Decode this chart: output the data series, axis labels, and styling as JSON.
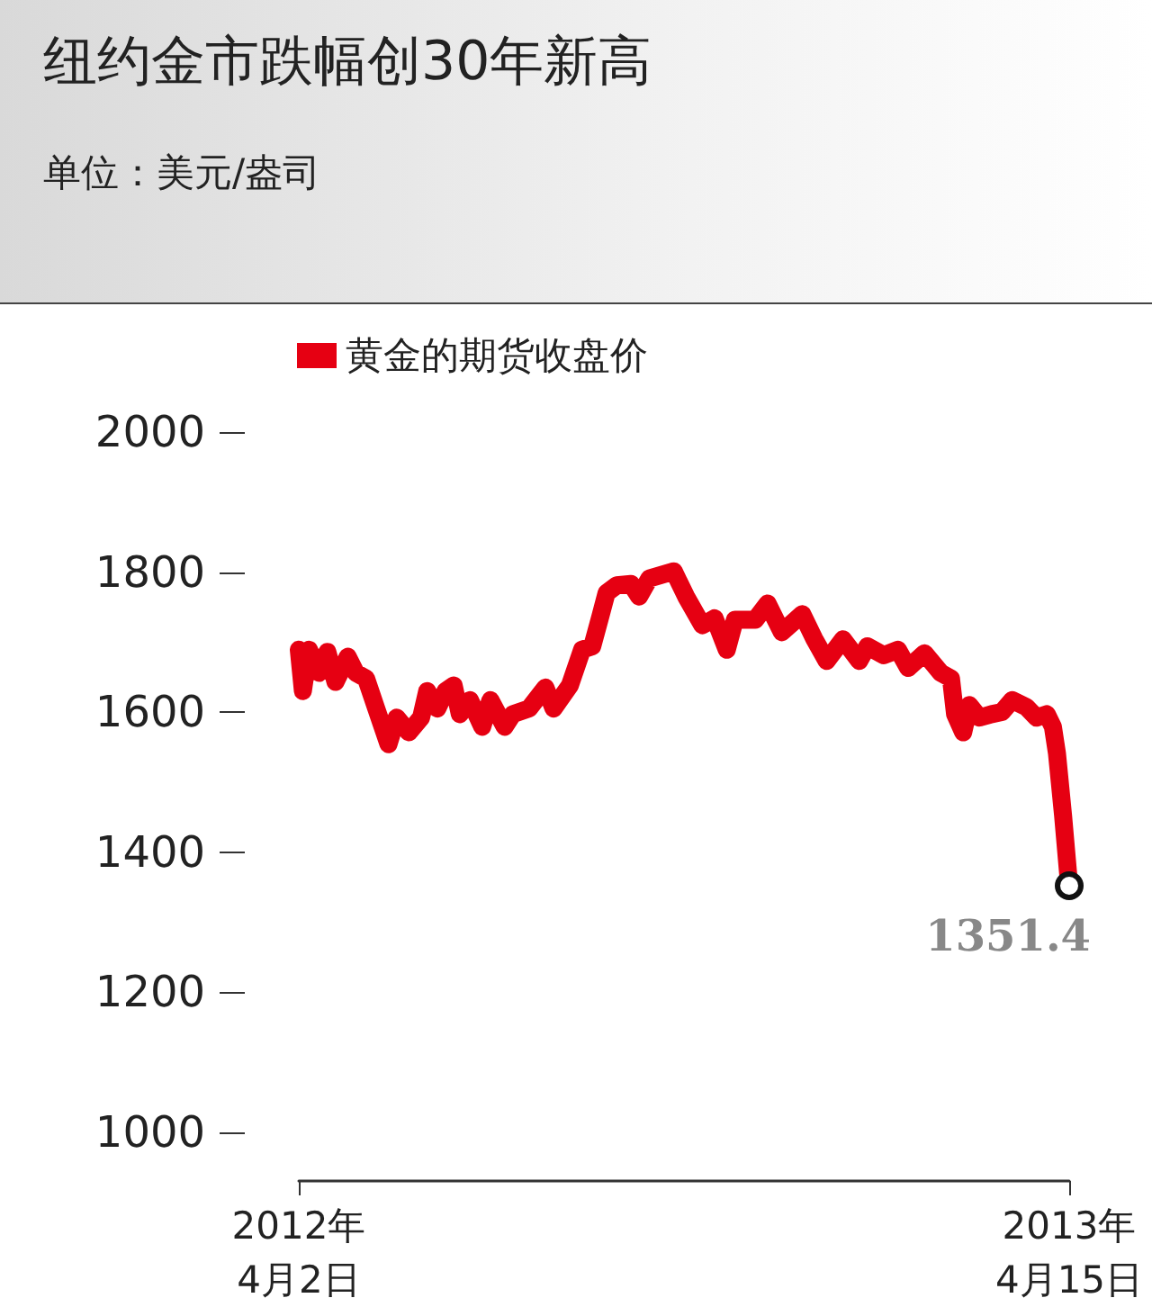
{
  "chart_data": {
    "type": "line",
    "title": "纽约金市跌幅创30年新高",
    "subtitle": "单位：美元/盎司",
    "x": [
      "2012-04-02",
      "2012-04-04",
      "2012-04-07",
      "2012-04-12",
      "2012-04-16",
      "2012-04-20",
      "2012-04-26",
      "2012-04-30",
      "2012-05-05",
      "2012-05-10",
      "2012-05-16",
      "2012-05-20",
      "2012-05-26",
      "2012-06-01",
      "2012-06-04",
      "2012-06-09",
      "2012-06-13",
      "2012-06-17",
      "2012-06-20",
      "2012-06-25",
      "2012-07-01",
      "2012-07-05",
      "2012-07-12",
      "2012-07-16",
      "2012-07-24",
      "2012-08-01",
      "2012-08-05",
      "2012-08-13",
      "2012-08-19",
      "2012-08-24",
      "2012-08-28",
      "2012-08-31",
      "2012-09-05",
      "2012-09-12",
      "2012-09-16",
      "2012-09-21",
      "2012-10-03",
      "2012-10-09",
      "2012-10-17",
      "2012-10-23",
      "2012-10-29",
      "2012-11-02",
      "2012-11-12",
      "2012-11-18",
      "2012-11-25",
      "2012-12-05",
      "2012-12-11",
      "2012-12-17",
      "2012-12-25",
      "2013-01-02",
      "2013-01-06",
      "2013-01-14",
      "2013-01-21",
      "2013-01-26",
      "2013-02-03",
      "2013-02-11",
      "2013-02-16",
      "2013-02-18",
      "2013-02-22",
      "2013-02-25",
      "2013-03-02",
      "2013-03-08",
      "2013-03-13",
      "2013-03-18",
      "2013-03-25",
      "2013-03-30",
      "2013-04-04",
      "2013-04-07",
      "2013-04-09",
      "2013-04-12",
      "2013-04-15"
    ],
    "series": [
      {
        "name": "黄金的期货收盘价",
        "color": "#e60012",
        "values": [
          1689,
          1630,
          1689,
          1656,
          1686,
          1643,
          1679,
          1656,
          1648,
          1605,
          1554,
          1592,
          1571,
          1592,
          1630,
          1605,
          1630,
          1638,
          1597,
          1617,
          1579,
          1617,
          1579,
          1597,
          1605,
          1635,
          1605,
          1638,
          1689,
          1694,
          1737,
          1770,
          1781,
          1783,
          1765,
          1791,
          1801,
          1765,
          1724,
          1734,
          1689,
          1732,
          1732,
          1755,
          1714,
          1740,
          1704,
          1673,
          1704,
          1673,
          1694,
          1681,
          1689,
          1663,
          1684,
          1656,
          1648,
          1597,
          1571,
          1610,
          1592,
          1597,
          1600,
          1617,
          1607,
          1592,
          1597,
          1579,
          1541,
          1452,
          1351.4
        ],
        "value_labels": [
          null,
          null,
          null,
          null,
          null,
          null,
          null,
          null,
          null,
          null,
          null,
          null,
          null,
          null,
          null,
          null,
          null,
          null,
          null,
          null,
          null,
          null,
          null,
          null,
          null,
          null,
          null,
          null,
          null,
          null,
          null,
          null,
          null,
          null,
          null,
          null,
          null,
          null,
          null,
          null,
          null,
          null,
          null,
          null,
          null,
          null,
          null,
          null,
          null,
          null,
          null,
          null,
          null,
          null,
          null,
          null,
          null,
          null,
          null,
          null,
          null,
          null,
          null,
          null,
          null,
          null,
          null,
          null,
          null,
          null,
          "1351.4"
        ]
      }
    ],
    "xlim": [
      "2012-04-02",
      "2013-04-15"
    ],
    "xticks": [
      {
        "value": "2012-04-02",
        "label": "2012年\n4月2日"
      },
      {
        "value": "2013-04-15",
        "label": "2013年\n4月15日"
      }
    ],
    "ylim": [
      930,
      2000
    ],
    "yticks": [
      1000,
      1200,
      1400,
      1600,
      1800,
      2000
    ],
    "legend": "top left",
    "marker": "none",
    "line_style": "solid"
  }
}
